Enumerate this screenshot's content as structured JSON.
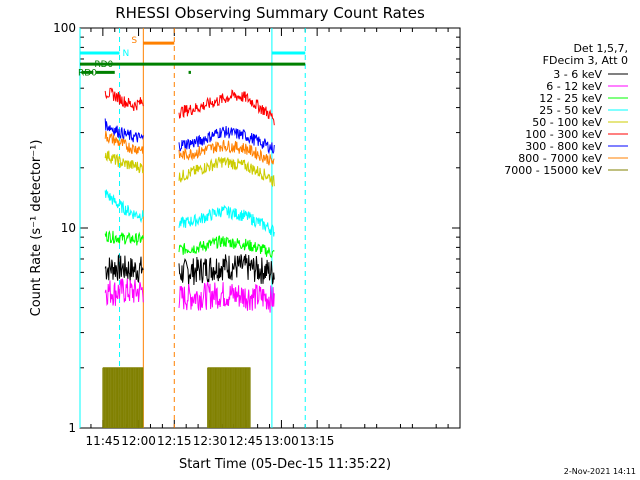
{
  "chart_data": {
    "type": "line",
    "title": "RHESSI Observing Summary Count Rates",
    "xlabel": "Start Time (05-Dec-15 11:35:22)",
    "ylabel": "Count Rate (s⁻¹ detector⁻¹)",
    "yscale": "log",
    "ylim": [
      1,
      100
    ],
    "xlim_minutes": [
      35.4,
      195
    ],
    "x_ticks": [
      {
        "min": 45,
        "label": "11:45"
      },
      {
        "min": 60,
        "label": "12:00"
      },
      {
        "min": 75,
        "label": "12:15"
      },
      {
        "min": 90,
        "label": "12:30"
      },
      {
        "min": 105,
        "label": "12:45"
      },
      {
        "min": 120,
        "label": "13:00"
      },
      {
        "min": 135,
        "label": "13:15"
      }
    ],
    "y_ticks": [
      {
        "v": 1,
        "label": "1"
      },
      {
        "v": 10,
        "label": "10"
      },
      {
        "v": 100,
        "label": "100"
      }
    ],
    "legend_header": [
      "Det 1,5,7,",
      "FDecim 3, Att 0"
    ],
    "legend_placement": "right",
    "series": [
      {
        "name": "3 - 6 keV",
        "color": "#000000",
        "segments": [
          {
            "x": [
              46,
              50,
              54,
              58,
              62
            ],
            "y": [
              6.3,
              6.4,
              6.3,
              6.2,
              6.3
            ]
          },
          {
            "x": [
              77,
              85,
              95,
              105,
              115,
              117
            ],
            "y": [
              6.0,
              6.2,
              6.5,
              6.4,
              6.1,
              6.0
            ]
          }
        ]
      },
      {
        "name": "6 - 12 keV",
        "color": "#ff00ff",
        "segments": [
          {
            "x": [
              46,
              50,
              54,
              58,
              62
            ],
            "y": [
              4.9,
              4.8,
              4.9,
              4.8,
              4.9
            ]
          },
          {
            "x": [
              77,
              85,
              95,
              105,
              115,
              117
            ],
            "y": [
              4.5,
              4.6,
              4.7,
              4.6,
              4.5,
              4.4
            ]
          }
        ]
      },
      {
        "name": "12 - 25 keV",
        "color": "#00ff00",
        "segments": [
          {
            "x": [
              46,
              50,
              54,
              58,
              62
            ],
            "y": [
              9.2,
              9.0,
              8.9,
              8.8,
              8.8
            ]
          },
          {
            "x": [
              77,
              85,
              95,
              105,
              115,
              117
            ],
            "y": [
              7.8,
              8.0,
              8.6,
              8.3,
              7.6,
              7.4
            ]
          }
        ]
      },
      {
        "name": "25 - 50 keV",
        "color": "#00ffff",
        "segments": [
          {
            "x": [
              46,
              50,
              54,
              58,
              62
            ],
            "y": [
              15.0,
              13.5,
              12.5,
              11.8,
              11.5
            ]
          },
          {
            "x": [
              77,
              85,
              95,
              105,
              115,
              117
            ],
            "y": [
              10.5,
              11.0,
              12.2,
              11.5,
              10.0,
              9.6
            ]
          }
        ]
      },
      {
        "name": "50 - 100 keV",
        "color": "#cccc00",
        "segments": [
          {
            "x": [
              46,
              50,
              54,
              58,
              62
            ],
            "y": [
              23.5,
              22.0,
              21.0,
              20.5,
              20.0
            ]
          },
          {
            "x": [
              77,
              85,
              95,
              105,
              115,
              117
            ],
            "y": [
              18.0,
              19.5,
              21.5,
              20.5,
              18.0,
              17.0
            ]
          }
        ]
      },
      {
        "name": "100 - 300 keV",
        "color": "#ff0000",
        "segments": [
          {
            "x": [
              46,
              50,
              54,
              58,
              62
            ],
            "y": [
              48,
              46,
              43,
              41,
              43
            ]
          },
          {
            "x": [
              77,
              85,
              95,
              100,
              105,
              110,
              115,
              117
            ],
            "y": [
              38,
              40,
              44,
              46,
              45,
              41,
              37,
              35
            ]
          }
        ]
      },
      {
        "name": "300 - 800 keV",
        "color": "#0000ff",
        "segments": [
          {
            "x": [
              46,
              50,
              54,
              58,
              62
            ],
            "y": [
              33,
              31,
              29.5,
              28.5,
              28
            ]
          },
          {
            "x": [
              77,
              85,
              95,
              105,
              115,
              117
            ],
            "y": [
              26,
              27,
              30.5,
              29,
              25.5,
              25
            ]
          }
        ]
      },
      {
        "name": "800 - 7000 keV",
        "color": "#ff8000",
        "segments": [
          {
            "x": [
              46,
              50,
              54,
              58,
              62
            ],
            "y": [
              29,
              27.5,
              26,
              25,
              25
            ]
          },
          {
            "x": [
              77,
              85,
              95,
              105,
              115,
              117
            ],
            "y": [
              23,
              24,
              26,
              25,
              22,
              21
            ]
          }
        ]
      },
      {
        "name": "7000 - 15000 keV",
        "color": "#808000",
        "segments": [
          {
            "x": [
              45,
              50,
              55,
              60,
              62
            ],
            "y": [
              2.0,
              2.0,
              2.0,
              2.0,
              2.0
            ]
          },
          {
            "x": [
              89,
              95,
              100,
              105,
              107
            ],
            "y": [
              2.0,
              2.0,
              2.0,
              2.0,
              2.0
            ]
          }
        ]
      }
    ],
    "annotations": [
      "N",
      "S",
      "RD0",
      "RD0"
    ],
    "event_bars": [
      {
        "label": "N",
        "color": "#00ffff",
        "x": [
          [
            35.4,
            52
          ],
          [
            116,
            130
          ]
        ],
        "y": 75
      },
      {
        "label": "S",
        "color": "#ff8000",
        "x": [
          [
            62,
            75
          ]
        ],
        "y": 84
      },
      {
        "label": "RD0",
        "color": "#008000",
        "x": [
          [
            35.4,
            130
          ]
        ],
        "y": 66
      },
      {
        "label": "RD0",
        "color": "#008000",
        "x": [
          [
            36,
            41
          ],
          [
            42,
            50
          ],
          [
            81,
            82
          ]
        ],
        "y": 60
      }
    ],
    "vlines": [
      {
        "x": 35.4,
        "style": "solid",
        "color": "#00ffff"
      },
      {
        "x": 52,
        "style": "dashed",
        "color": "#00ffff"
      },
      {
        "x": 116,
        "style": "solid",
        "color": "#00ffff"
      },
      {
        "x": 130,
        "style": "dashed",
        "color": "#00ffff"
      },
      {
        "x": 62,
        "style": "solid",
        "color": "#ff8000"
      },
      {
        "x": 75,
        "style": "dashed",
        "color": "#ff8000"
      }
    ],
    "grid": false
  },
  "footer_date": "2-Nov-2021 14:11"
}
